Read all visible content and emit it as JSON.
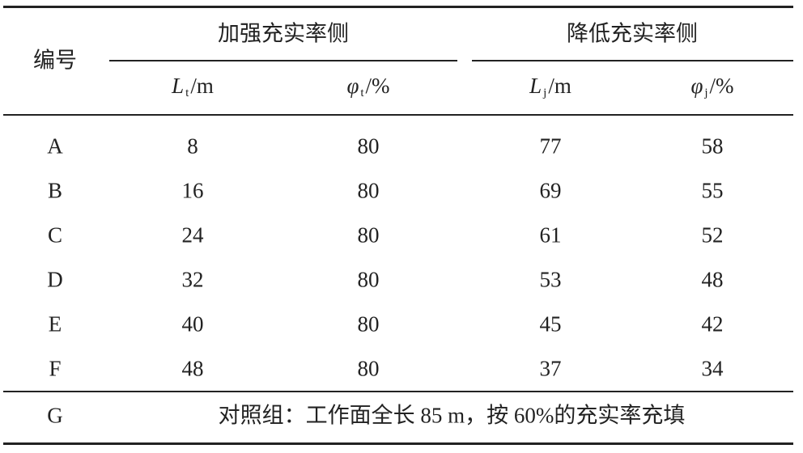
{
  "table": {
    "header": {
      "id": "编号",
      "groups": [
        "加强充实率侧",
        "降低充实率侧"
      ],
      "columns": [
        {
          "symbol": "L",
          "sub": "t",
          "unit": "/m"
        },
        {
          "symbol": "φ",
          "sub": "t",
          "unit": "/%"
        },
        {
          "symbol": "L",
          "sub": "j",
          "unit": "/m"
        },
        {
          "symbol": "φ",
          "sub": "j",
          "unit": "/%"
        }
      ]
    },
    "rows": [
      [
        "A",
        8,
        80,
        77,
        58
      ],
      [
        "B",
        16,
        80,
        69,
        55
      ],
      [
        "C",
        24,
        80,
        61,
        52
      ],
      [
        "D",
        32,
        80,
        53,
        48
      ],
      [
        "E",
        40,
        80,
        45,
        42
      ],
      [
        "F",
        48,
        80,
        37,
        34
      ]
    ],
    "control": {
      "id": "G",
      "note": "对照组：工作面全长 85 m，按 60%的充实率充填"
    }
  }
}
